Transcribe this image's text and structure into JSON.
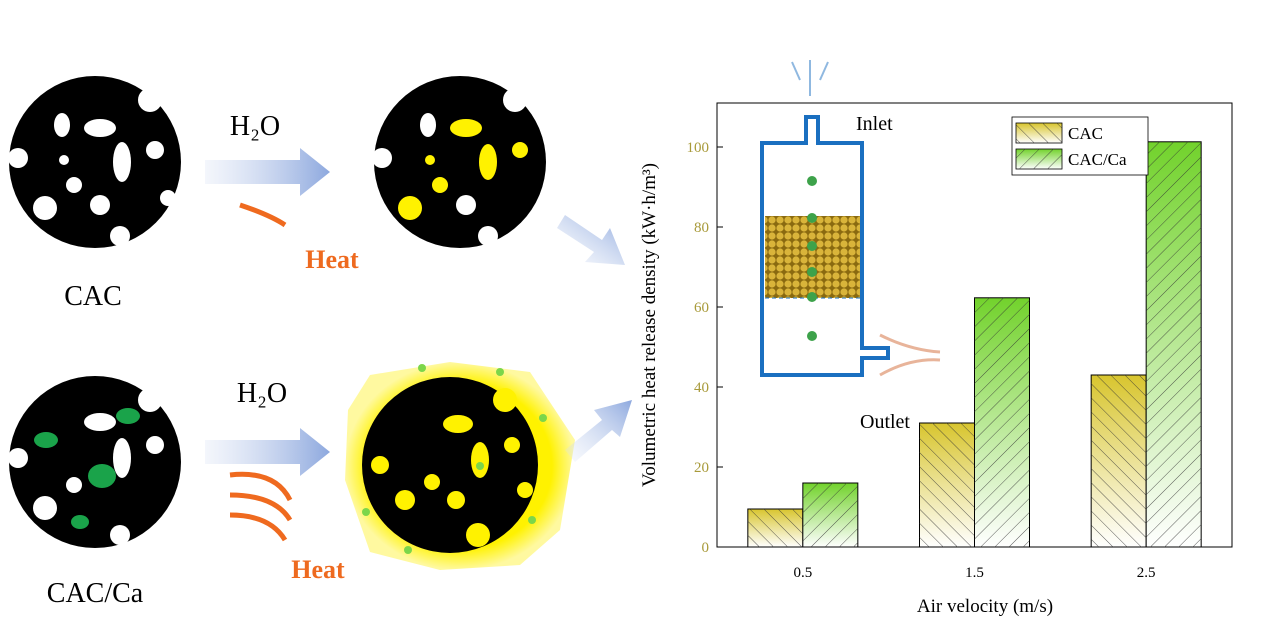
{
  "diagram": {
    "cac": "CAC",
    "cac_ca": "CAC/Ca",
    "h2o_top": "H₂O",
    "h2o_bottom": "H₂O",
    "heat_top": "Heat",
    "heat_bottom": "Heat",
    "inlet": "Inlet",
    "outlet": "Outlet"
  },
  "chart_data": {
    "type": "bar",
    "x_label": "Air velocity (m/s)",
    "y_label": "Volumetric heat release density (kW·h/m³)",
    "categories": [
      "0.5",
      "1.5",
      "2.5"
    ],
    "series": [
      {
        "name": "CAC",
        "color": "#d8c52e",
        "values": [
          9.5,
          31,
          43
        ]
      },
      {
        "name": "CAC/Ca",
        "color": "#72d22c",
        "values": [
          16,
          62.3,
          101.3
        ]
      }
    ],
    "ylim": [
      0,
      111
    ],
    "yticks": [
      0,
      20,
      40,
      60,
      80,
      100
    ],
    "tick_color": "#a89a3a",
    "legend": "top right"
  }
}
